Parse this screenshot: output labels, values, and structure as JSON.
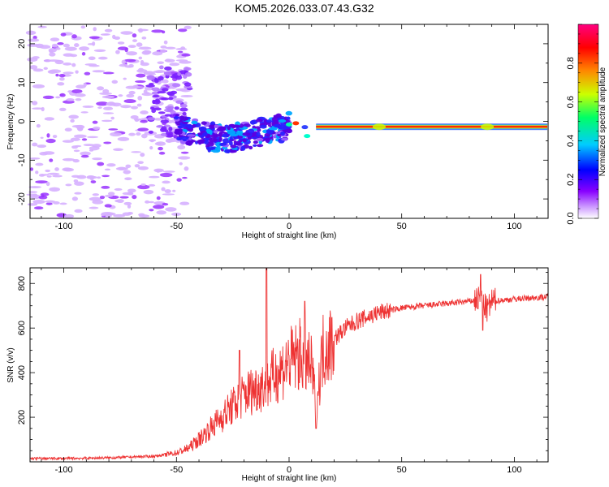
{
  "title": "KOM5.2026.033.07.43.G32",
  "chart_data": [
    {
      "type": "heatmap",
      "xlabel": "Height of straight line (km)",
      "ylabel": "Frequency (Hz)",
      "xlim": [
        -115,
        115
      ],
      "ylim": [
        -25,
        25
      ],
      "x_ticks": [
        -100,
        -50,
        0,
        50,
        100
      ],
      "y_ticks": [
        -20,
        -10,
        0,
        10,
        20
      ],
      "colorbar": {
        "label": "Normalized spectral amplitude",
        "range": [
          0,
          1
        ],
        "ticks": [
          "0.0",
          "0.2",
          "0.4",
          "0.6",
          "0.8"
        ],
        "colormap": [
          "#ffffff",
          "#cc99ff",
          "#8800ff",
          "#0000ff",
          "#00ccff",
          "#00ff66",
          "#ccff00",
          "#ff8800",
          "#ff0000",
          "#ff0080"
        ]
      },
      "ridge": [
        {
          "x": -50,
          "y": -1.5
        },
        {
          "x": -40,
          "y": -3.5
        },
        {
          "x": -30,
          "y": -4.5
        },
        {
          "x": -20,
          "y": -4.0
        },
        {
          "x": -10,
          "y": -2.5
        },
        {
          "x": 0,
          "y": -1.0
        },
        {
          "x": 10,
          "y": -1.2
        },
        {
          "x": 25,
          "y": -1.4
        },
        {
          "x": 50,
          "y": -1.4
        },
        {
          "x": 85,
          "y": -1.2
        },
        {
          "x": 115,
          "y": -1.2
        }
      ]
    },
    {
      "type": "line",
      "xlabel": "Height of straight line (km)",
      "ylabel": "SNR (v/v)",
      "xlim": [
        -115,
        115
      ],
      "ylim": [
        0,
        870
      ],
      "x_ticks": [
        -100,
        -50,
        0,
        50,
        100
      ],
      "y_ticks": [
        200,
        400,
        600,
        800
      ],
      "color": "#ee3333",
      "series": [
        {
          "x": [
            -115,
            -100,
            -80,
            -60,
            -50,
            -45,
            -40,
            -35,
            -30,
            -25,
            -20,
            -15,
            -10,
            -5,
            0,
            5,
            10,
            12,
            15,
            20,
            25,
            30,
            40,
            50,
            60,
            70,
            80,
            85,
            88,
            90,
            100,
            115
          ],
          "values": [
            15,
            15,
            18,
            25,
            40,
            60,
            100,
            150,
            200,
            250,
            300,
            330,
            350,
            400,
            450,
            480,
            420,
            250,
            500,
            550,
            600,
            630,
            670,
            690,
            700,
            710,
            720,
            730,
            680,
            720,
            730,
            740
          ]
        }
      ],
      "spikes": [
        {
          "x": -22,
          "y": 500
        },
        {
          "x": -10,
          "y": 870
        },
        {
          "x": 7,
          "y": 720
        },
        {
          "x": 12,
          "y": 150
        },
        {
          "x": 85,
          "y": 840
        },
        {
          "x": 86,
          "y": 590
        }
      ]
    }
  ]
}
